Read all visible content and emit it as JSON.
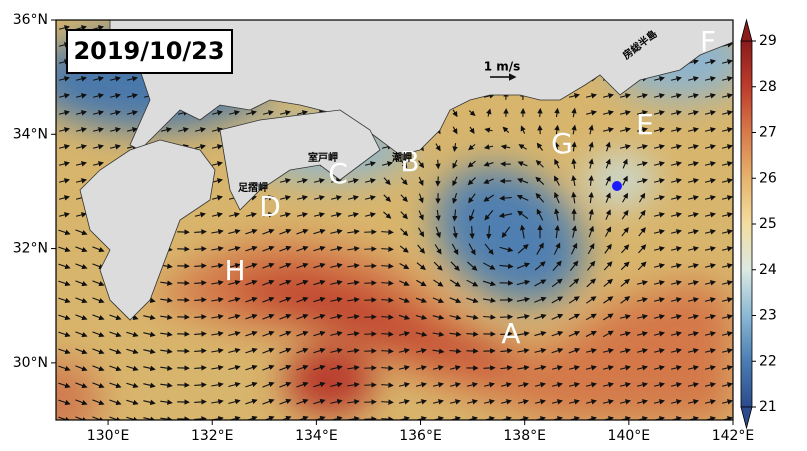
{
  "title": "2019/10/23",
  "extent": {
    "lon": [
      129,
      142
    ],
    "lat": [
      29,
      36
    ]
  },
  "lon_ticks": [
    {
      "value": 130,
      "label": "130°E"
    },
    {
      "value": 132,
      "label": "132°E"
    },
    {
      "value": 134,
      "label": "134°E"
    },
    {
      "value": 136,
      "label": "136°E"
    },
    {
      "value": 138,
      "label": "138°E"
    },
    {
      "value": 140,
      "label": "140°E"
    },
    {
      "value": 142,
      "label": "142°E"
    }
  ],
  "lat_ticks": [
    {
      "value": 30,
      "label": "30°N"
    },
    {
      "value": 32,
      "label": "32°N"
    },
    {
      "value": 34,
      "label": "34°N"
    },
    {
      "value": 36,
      "label": "36°N"
    }
  ],
  "colorbar": {
    "range": [
      21,
      29
    ],
    "ticks": [
      21,
      22,
      23,
      24,
      25,
      26,
      27,
      28,
      29
    ]
  },
  "scale_label": "1 m/s",
  "region_labels": [
    "A",
    "B",
    "C",
    "D",
    "E",
    "F",
    "G",
    "H"
  ],
  "place_labels": [
    "足摺岬",
    "室戸岬",
    "潮岬",
    "房総半島"
  ]
}
